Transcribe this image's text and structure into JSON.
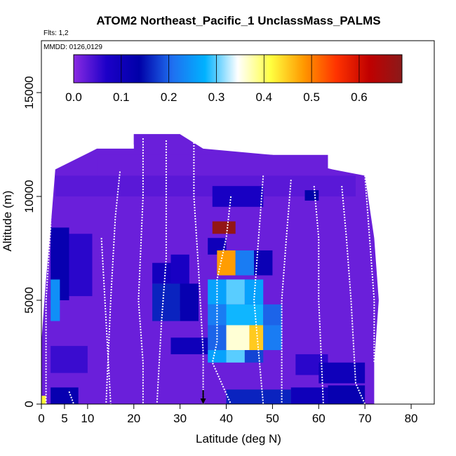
{
  "chart_data": {
    "type": "heatmap",
    "title": "ATOM2 Northeast_Pacific_1 UnclassMass_PALMS",
    "subtitle_flights": "Flts: 1,2",
    "subtitle_dates": "MMDD: 0126,0129",
    "xlabel": "Latitude (deg N)",
    "ylabel": "Altitude (m)",
    "xlim": [
      0,
      85
    ],
    "ylim": [
      0,
      17500
    ],
    "xticks": [
      0,
      5,
      10,
      20,
      30,
      40,
      50,
      60,
      70,
      80
    ],
    "xtick_labels": [
      "0",
      "5",
      "10",
      "20",
      "30",
      "40",
      "50",
      "60",
      "70",
      "80"
    ],
    "yticks": [
      0,
      5000,
      10000,
      15000
    ],
    "ytick_labels": [
      "0",
      "5000",
      "10000",
      "15000"
    ],
    "colorbar": {
      "min": 0.0,
      "max": 0.69,
      "ticks": [
        0.0,
        0.1,
        0.2,
        0.3,
        0.4,
        0.5,
        0.6
      ],
      "tick_labels": [
        "0.0",
        "0.1",
        "0.2",
        "0.3",
        "0.4",
        "0.5",
        "0.6"
      ],
      "stops": [
        "#8a2be2",
        "#1c00c8",
        "#0000a8",
        "#1f6ff0",
        "#00b2ff",
        "#ffffff",
        "#ffff40",
        "#ff9900",
        "#ff3300",
        "#c00000",
        "#8b1a1a"
      ]
    },
    "background_value": 0.02,
    "cells": [
      {
        "x": [
          20,
          30
        ],
        "y": [
          12500,
          13000
        ],
        "v": 0.02
      },
      {
        "x": [
          12,
          62
        ],
        "y": [
          11000,
          12000
        ],
        "v": 0.02
      },
      {
        "x": [
          3,
          68
        ],
        "y": [
          10000,
          11000
        ],
        "v": 0.03
      },
      {
        "x": [
          37,
          48
        ],
        "y": [
          9500,
          10500
        ],
        "v": 0.08
      },
      {
        "x": [
          57,
          60
        ],
        "y": [
          9800,
          10300
        ],
        "v": 0.14
      },
      {
        "x": [
          37,
          42
        ],
        "y": [
          8200,
          8800
        ],
        "v": 0.68
      },
      {
        "x": [
          36,
          40
        ],
        "y": [
          7200,
          8000
        ],
        "v": 0.1
      },
      {
        "x": [
          2,
          6
        ],
        "y": [
          5000,
          8500
        ],
        "v": 0.12
      },
      {
        "x": [
          6,
          11
        ],
        "y": [
          5200,
          8200
        ],
        "v": 0.06
      },
      {
        "x": [
          24,
          30
        ],
        "y": [
          5800,
          6800
        ],
        "v": 0.09
      },
      {
        "x": [
          28,
          32
        ],
        "y": [
          4500,
          7200
        ],
        "v": 0.08
      },
      {
        "x": [
          38,
          42
        ],
        "y": [
          6200,
          7400
        ],
        "v": 0.48
      },
      {
        "x": [
          42,
          46
        ],
        "y": [
          6200,
          7400
        ],
        "v": 0.22
      },
      {
        "x": [
          46,
          50
        ],
        "y": [
          6200,
          7400
        ],
        "v": 0.11
      },
      {
        "x": [
          24,
          30
        ],
        "y": [
          4000,
          5800
        ],
        "v": 0.16
      },
      {
        "x": [
          30,
          34
        ],
        "y": [
          4000,
          5800
        ],
        "v": 0.12
      },
      {
        "x": [
          36,
          40
        ],
        "y": [
          4800,
          6000
        ],
        "v": 0.26
      },
      {
        "x": [
          40,
          44
        ],
        "y": [
          4800,
          6000
        ],
        "v": 0.3
      },
      {
        "x": [
          44,
          48
        ],
        "y": [
          4800,
          6000
        ],
        "v": 0.26
      },
      {
        "x": [
          2,
          4
        ],
        "y": [
          4000,
          6000
        ],
        "v": 0.24
      },
      {
        "x": [
          36,
          40
        ],
        "y": [
          3800,
          4800
        ],
        "v": 0.22
      },
      {
        "x": [
          40,
          48
        ],
        "y": [
          3800,
          4800
        ],
        "v": 0.28
      },
      {
        "x": [
          48,
          52
        ],
        "y": [
          3800,
          4800
        ],
        "v": 0.2
      },
      {
        "x": [
          36,
          40
        ],
        "y": [
          2600,
          3800
        ],
        "v": 0.2
      },
      {
        "x": [
          40,
          45
        ],
        "y": [
          2600,
          3800
        ],
        "v": 0.36
      },
      {
        "x": [
          45,
          48
        ],
        "y": [
          2600,
          3800
        ],
        "v": 0.45
      },
      {
        "x": [
          48,
          52
        ],
        "y": [
          2600,
          3800
        ],
        "v": 0.22
      },
      {
        "x": [
          36,
          40
        ],
        "y": [
          2000,
          2600
        ],
        "v": 0.26
      },
      {
        "x": [
          40,
          44
        ],
        "y": [
          2000,
          2600
        ],
        "v": 0.3
      },
      {
        "x": [
          44,
          48
        ],
        "y": [
          2000,
          2600
        ],
        "v": 0.18
      },
      {
        "x": [
          28,
          36
        ],
        "y": [
          2400,
          3200
        ],
        "v": 0.1
      },
      {
        "x": [
          55,
          62
        ],
        "y": [
          1400,
          2400
        ],
        "v": 0.06
      },
      {
        "x": [
          60,
          70
        ],
        "y": [
          1000,
          2000
        ],
        "v": 0.1
      },
      {
        "x": [
          2,
          10
        ],
        "y": [
          1500,
          2800
        ],
        "v": 0.05
      },
      {
        "x": [
          2,
          8
        ],
        "y": [
          0,
          800
        ],
        "v": 0.12
      },
      {
        "x": [
          0,
          1
        ],
        "y": [
          0,
          400
        ],
        "v": 0.42
      },
      {
        "x": [
          40,
          54
        ],
        "y": [
          0,
          700
        ],
        "v": 0.16
      },
      {
        "x": [
          54,
          62
        ],
        "y": [
          0,
          800
        ],
        "v": 0.1
      },
      {
        "x": [
          62,
          70
        ],
        "y": [
          0,
          900
        ],
        "v": 0.12
      }
    ],
    "profiles": [
      [
        [
          2,
          11300
        ],
        [
          2,
          8500
        ],
        [
          1,
          5000
        ],
        [
          1,
          0
        ]
      ],
      [
        [
          6,
          600
        ],
        [
          7,
          0
        ]
      ],
      [
        [
          13,
          8000
        ],
        [
          15,
          0
        ]
      ],
      [
        [
          17,
          11200
        ],
        [
          16,
          9000
        ],
        [
          15,
          5000
        ],
        [
          14,
          0
        ]
      ],
      [
        [
          22,
          12800
        ],
        [
          22,
          10000
        ],
        [
          21,
          5000
        ],
        [
          22,
          2000
        ],
        [
          22,
          0
        ]
      ],
      [
        [
          27,
          12700
        ],
        [
          27,
          10000
        ],
        [
          27,
          7000
        ],
        [
          26,
          4000
        ],
        [
          25,
          0
        ]
      ],
      [
        [
          33,
          12600
        ],
        [
          33,
          10000
        ],
        [
          34,
          6500
        ],
        [
          35,
          2500
        ],
        [
          35,
          0
        ]
      ],
      [
        [
          41,
          10000
        ],
        [
          40,
          8000
        ],
        [
          38,
          6000
        ],
        [
          38,
          3000
        ],
        [
          37,
          2000
        ],
        [
          40,
          500
        ],
        [
          41,
          0
        ]
      ],
      [
        [
          48,
          11000
        ],
        [
          47,
          8000
        ],
        [
          46,
          5000
        ],
        [
          47,
          2500
        ],
        [
          48,
          0
        ]
      ],
      [
        [
          54,
          10800
        ],
        [
          53,
          8000
        ],
        [
          52,
          5000
        ],
        [
          52,
          0
        ]
      ],
      [
        [
          59,
          10500
        ],
        [
          60,
          8000
        ],
        [
          60,
          5000
        ],
        [
          61,
          0
        ]
      ],
      [
        [
          65,
          10500
        ],
        [
          66,
          8000
        ],
        [
          67,
          5000
        ],
        [
          68,
          1000
        ],
        [
          70,
          0
        ]
      ],
      [
        [
          70,
          11000
        ],
        [
          71,
          8000
        ],
        [
          72,
          5000
        ],
        [
          72,
          2000
        ]
      ]
    ],
    "markers": [
      {
        "x": 35,
        "y": 0,
        "type": "arrow-down"
      }
    ]
  }
}
